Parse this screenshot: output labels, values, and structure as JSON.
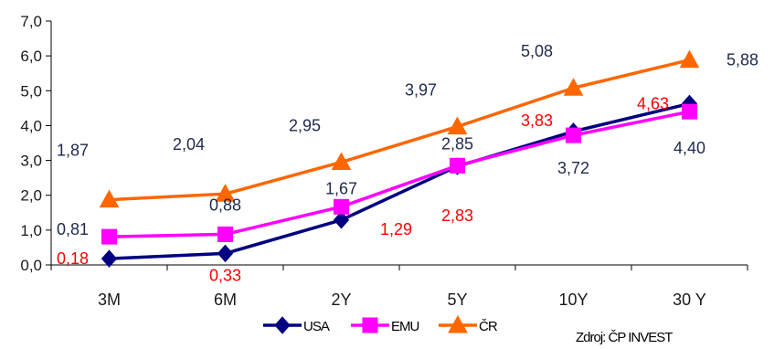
{
  "chart_data": {
    "type": "line",
    "title": "",
    "xlabel": "",
    "ylabel": "",
    "categories": [
      "3M",
      "6M",
      "2Y",
      "5Y",
      "10Y",
      "30 Y"
    ],
    "yticks": [
      "0,0",
      "1,0",
      "2,0",
      "3,0",
      "4,0",
      "5,0",
      "6,0",
      "7,0"
    ],
    "ylim": [
      0,
      7
    ],
    "grid": false,
    "legend_position": "bottom",
    "source": "Zdroj: ČP INVEST",
    "series": [
      {
        "name": "USA",
        "color": "#000080",
        "marker": "diamond",
        "values": [
          0.18,
          0.33,
          1.29,
          2.83,
          3.83,
          4.63
        ],
        "labels": [
          "0,18",
          "0,33",
          "1,29",
          "2,83",
          "3,83",
          "4,63"
        ],
        "label_color": "#ff0000"
      },
      {
        "name": "EMU",
        "color": "#ff00ff",
        "marker": "square",
        "values": [
          0.81,
          0.88,
          1.67,
          2.85,
          3.72,
          4.4
        ],
        "labels": [
          "0,81",
          "0,88",
          "1,67",
          "2,85",
          "3,72",
          "4,40"
        ],
        "label_color": "#1f2a4d"
      },
      {
        "name": "ČR",
        "color": "#ff6600",
        "marker": "triangle",
        "values": [
          1.87,
          2.04,
          2.95,
          3.97,
          5.08,
          5.88
        ],
        "labels": [
          "1,87",
          "2,04",
          "2,95",
          "3,97",
          "5,08",
          "5,88"
        ],
        "label_color": "#1f2a4d"
      }
    ]
  }
}
